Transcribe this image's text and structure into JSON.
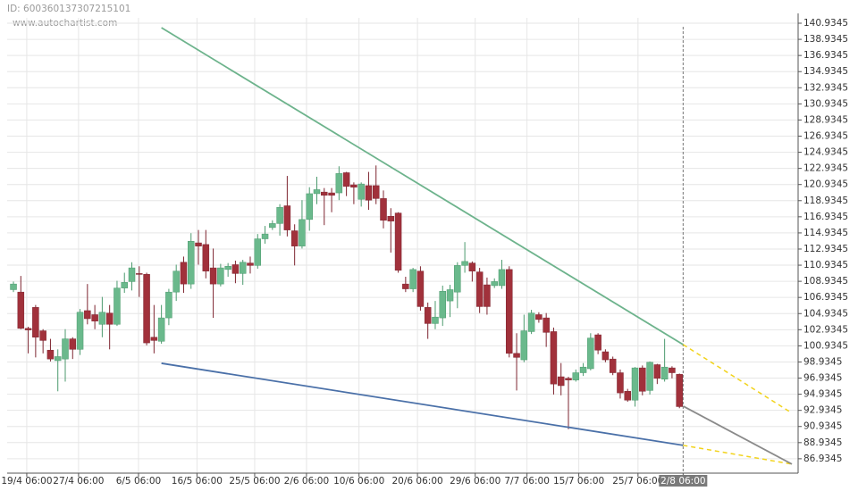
{
  "chart_data": {
    "type": "candlestick",
    "id_label": "ID: 600360137307215101",
    "watermark": "www.autochartist.com",
    "open": [
      107.9,
      107.6,
      103.1,
      105.7,
      102.8,
      100.4,
      99.1,
      99.3,
      101.8,
      100.5,
      105.3,
      104.8,
      103.6,
      105.0,
      103.6,
      108.1,
      108.9,
      109.9,
      109.8,
      102.0,
      101.5,
      104.4,
      107.6,
      111.3,
      108.6,
      113.7,
      113.5,
      110.6,
      108.6,
      110.4,
      111.0,
      109.9,
      111.2,
      110.9,
      114.2,
      115.6,
      116.1,
      118.3,
      115.2,
      113.3,
      116.6,
      119.8,
      120.0,
      119.9,
      119.9,
      122.4,
      120.9,
      119.1,
      120.8,
      120.8,
      119.2,
      117.0,
      117.4,
      108.6,
      108.0,
      110.2,
      105.7,
      103.7,
      104.4,
      106.5,
      107.6,
      110.9,
      111.2,
      110.1,
      108.5,
      108.4,
      108.4,
      110.4,
      100.0,
      99.2,
      102.7,
      104.8,
      104.4,
      102.7,
      97.1,
      96.9,
      96.7,
      97.6,
      98.1,
      102.3,
      100.2,
      99.3,
      97.6,
      95.3,
      94.2,
      98.2,
      95.4,
      98.6,
      96.8,
      98.2,
      97.4
    ],
    "high": [
      108.9,
      109.6,
      103.3,
      106.0,
      103.0,
      101.8,
      100.5,
      103.0,
      102.0,
      105.5,
      108.6,
      106.0,
      107.0,
      106.0,
      109.0,
      110.0,
      111.3,
      110.8,
      110.0,
      106.0,
      106.0,
      108.0,
      111.0,
      112.0,
      114.9,
      115.3,
      115.3,
      113.0,
      111.1,
      111.2,
      111.5,
      111.6,
      112.0,
      114.8,
      115.8,
      116.5,
      118.5,
      122.0,
      116.0,
      119.0,
      120.6,
      121.9,
      120.5,
      120.5,
      123.2,
      122.5,
      121.2,
      121.2,
      122.5,
      123.3,
      120.2,
      118.0,
      117.5,
      109.5,
      110.6,
      110.8,
      106.3,
      106.5,
      108.4,
      108.5,
      111.3,
      113.8,
      111.4,
      110.6,
      109.4,
      109.3,
      111.6,
      110.8,
      102.5,
      104.8,
      105.4,
      105.1,
      105.0,
      103.2,
      98.8,
      97.1,
      98.0,
      98.8,
      102.5,
      102.5,
      100.5,
      99.6,
      98.0,
      95.6,
      98.3,
      98.5,
      99.0,
      98.7,
      101.8,
      98.4,
      97.5
    ],
    "low": [
      107.6,
      103.0,
      100.0,
      99.5,
      100.0,
      99.0,
      95.3,
      96.5,
      99.3,
      99.8,
      103.6,
      103.0,
      102.0,
      100.5,
      103.4,
      107.5,
      107.8,
      107.0,
      101.0,
      100.0,
      101.2,
      103.5,
      106.5,
      107.5,
      108.0,
      111.0,
      109.3,
      104.4,
      108.3,
      109.5,
      108.7,
      108.5,
      109.9,
      110.5,
      113.6,
      115.3,
      114.6,
      114.5,
      110.9,
      113.0,
      115.2,
      118.5,
      115.9,
      117.5,
      119.0,
      119.5,
      118.5,
      118.2,
      117.8,
      118.5,
      115.5,
      112.5,
      110.0,
      107.6,
      107.6,
      105.3,
      101.8,
      103.0,
      103.4,
      104.5,
      105.6,
      110.0,
      108.9,
      105.0,
      104.8,
      108.1,
      108.0,
      99.5,
      95.4,
      98.9,
      102.4,
      103.8,
      100.8,
      94.9,
      94.8,
      90.6,
      96.5,
      97.2,
      97.9,
      99.9,
      98.9,
      97.3,
      94.4,
      94.0,
      93.4,
      94.8,
      94.9,
      96.2,
      96.5,
      96.9,
      93.2
    ],
    "close": [
      108.6,
      103.1,
      102.9,
      102.0,
      101.6,
      99.3,
      99.6,
      101.8,
      100.5,
      105.1,
      104.3,
      104.0,
      105.1,
      103.6,
      108.1,
      108.8,
      110.6,
      109.8,
      101.3,
      101.6,
      104.4,
      107.6,
      110.2,
      108.6,
      113.9,
      113.3,
      110.2,
      108.6,
      110.6,
      110.8,
      109.9,
      111.3,
      110.9,
      114.2,
      114.8,
      116.1,
      118.1,
      115.3,
      113.3,
      116.6,
      119.8,
      120.3,
      119.6,
      119.6,
      122.3,
      120.7,
      120.6,
      121.0,
      119.0,
      119.2,
      116.5,
      116.4,
      110.3,
      108.0,
      110.4,
      105.8,
      103.7,
      104.5,
      107.7,
      107.9,
      110.9,
      111.4,
      110.2,
      105.8,
      105.8,
      108.9,
      110.4,
      100.0,
      99.5,
      102.8,
      105.0,
      104.2,
      102.6,
      96.2,
      96.0,
      96.7,
      97.6,
      98.3,
      101.9,
      100.4,
      99.2,
      97.6,
      95.1,
      94.2,
      98.2,
      95.3,
      98.9,
      96.9,
      98.3,
      97.6,
      93.4
    ],
    "up_color": "#6ab98c",
    "down_color": "#a1313b",
    "lines": [
      {
        "color": "#6db38c",
        "dashed": false,
        "x": [
          20,
          90.5
        ],
        "values": [
          140.38,
          101.09
        ]
      },
      {
        "color": "#4a70a8",
        "dashed": false,
        "x": [
          20,
          90.5
        ],
        "values": [
          98.77,
          88.6
        ]
      },
      {
        "color": "#f2d31b",
        "dashed": true,
        "x": [
          90.5,
          105.2
        ],
        "values": [
          101.09,
          92.6
        ]
      },
      {
        "color": "#f2d31b",
        "dashed": true,
        "x": [
          90.5,
          105.2
        ],
        "values": [
          88.6,
          86.27
        ]
      },
      {
        "color": "#8a8a8a",
        "dashed": false,
        "x": [
          90.5,
          105.2
        ],
        "values": [
          93.46,
          86.27
        ]
      }
    ],
    "marker_x": 90.5,
    "xlim": [
      -0.85,
      106.04
    ],
    "ylim": [
      85.15,
      141.6
    ],
    "yticks": [
      140.9345,
      138.9345,
      136.9345,
      134.9345,
      132.9345,
      130.9345,
      128.9345,
      126.9345,
      124.9345,
      122.9345,
      120.9345,
      118.9345,
      116.9345,
      114.9345,
      112.9345,
      110.9345,
      108.9345,
      106.9345,
      104.9345,
      102.9345,
      100.9345,
      98.9345,
      96.9345,
      94.9345,
      92.9345,
      90.9345,
      88.9345,
      86.9345
    ],
    "xticks": [
      {
        "value": 1.8,
        "label": "19/4 06:00"
      },
      {
        "value": 8.8,
        "label": "27/4 06:00"
      },
      {
        "value": 16.9,
        "label": "6/5 06:00"
      },
      {
        "value": 24.8,
        "label": "16/5 06:00"
      },
      {
        "value": 32.6,
        "label": "25/5 06:00"
      },
      {
        "value": 39.6,
        "label": "2/6 06:00"
      },
      {
        "value": 46.7,
        "label": "10/6 06:00"
      },
      {
        "value": 54.6,
        "label": "20/6 06:00"
      },
      {
        "value": 62.4,
        "label": "29/6 06:00"
      },
      {
        "value": 69.4,
        "label": "7/7 06:00"
      },
      {
        "value": 76.4,
        "label": "15/7 06:00"
      },
      {
        "value": 84.4,
        "label": "25/7 06:00"
      },
      {
        "value": 90.5,
        "label": "2/8 06:00"
      }
    ],
    "highlighted_xtick": 12,
    "grid": true
  }
}
